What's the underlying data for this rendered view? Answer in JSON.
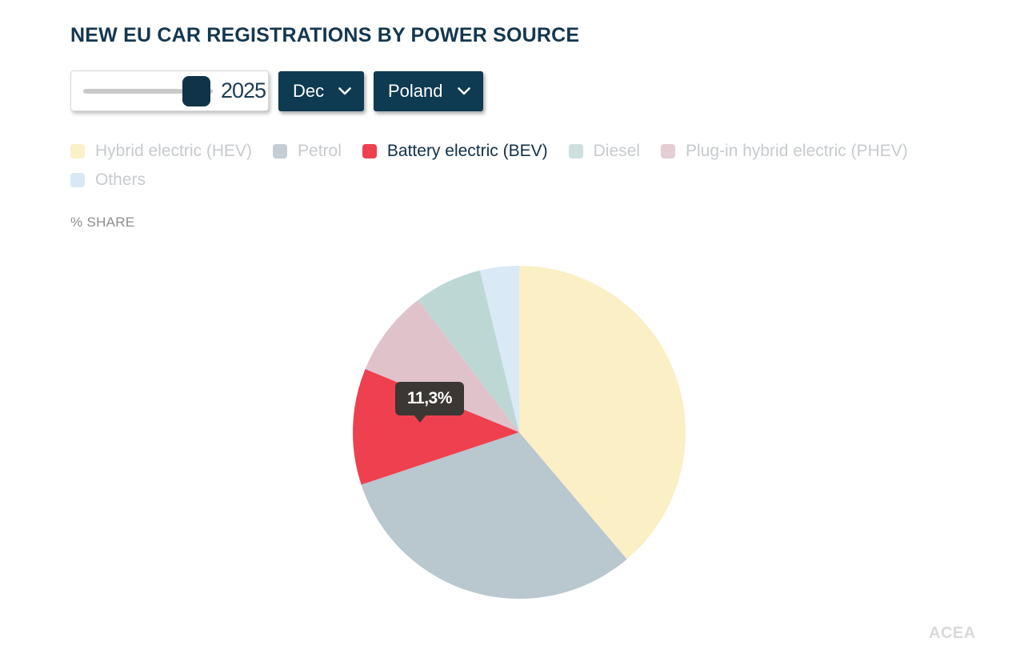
{
  "header": {
    "title": "NEW EU CAR REGISTRATIONS BY POWER SOURCE"
  },
  "controls": {
    "year_slider": {
      "value": "2025",
      "handle_position": "max"
    },
    "month_dropdown": {
      "selected": "Dec",
      "icon": "chevron-down"
    },
    "country_dropdown": {
      "selected": "Poland",
      "icon": "chevron-down"
    }
  },
  "legend": {
    "items": [
      {
        "label": "Hybrid electric (HEV)",
        "color": "#FBF0C7",
        "active": false
      },
      {
        "label": "Petrol",
        "color": "#C4CDD3",
        "active": false
      },
      {
        "label": "Battery electric (BEV)",
        "color": "#EF4050",
        "active": true
      },
      {
        "label": "Diesel",
        "color": "#CEE0DD",
        "active": false
      },
      {
        "label": "Plug-in hybrid electric (PHEV)",
        "color": "#E5CDD4",
        "active": false
      },
      {
        "label": "Others",
        "color": "#D8E8F6",
        "active": false
      }
    ]
  },
  "axis_label": "% SHARE",
  "chart_data": {
    "type": "pie",
    "title": "NEW EU CAR REGISTRATIONS BY POWER SOURCE",
    "value_unit": "% share",
    "period": {
      "year": "2025",
      "month": "Dec",
      "country": "Poland"
    },
    "start_angle_deg": 0,
    "direction": "clockwise",
    "slices": [
      {
        "label": "Hybrid electric (HEV)",
        "value": 38.8,
        "color": "#FAEFC5"
      },
      {
        "label": "Petrol",
        "value": 31.1,
        "color": "#B9C7CF"
      },
      {
        "label": "Battery electric (BEV)",
        "value": 11.3,
        "color": "#EE404E"
      },
      {
        "label": "Plug-in hybrid electric (PHEV)",
        "value": 8.4,
        "color": "#E0C2CB"
      },
      {
        "label": "Diesel",
        "value": 6.6,
        "color": "#BDD7D5"
      },
      {
        "label": "Others",
        "value": 3.8,
        "color": "#D9E9F5"
      }
    ],
    "tooltip": {
      "text": "11,3%",
      "target_slice": "Battery electric (BEV)"
    }
  },
  "footer": {
    "source_label": "ACEA"
  },
  "colors": {
    "accent_navy": "#0E3A52",
    "title_navy": "#143750",
    "muted_legend_text": "#C7CBCE",
    "active_legend_text": "#0F3148",
    "tooltip_bg": "#3B3734",
    "source_text": "#D9D9D9"
  }
}
